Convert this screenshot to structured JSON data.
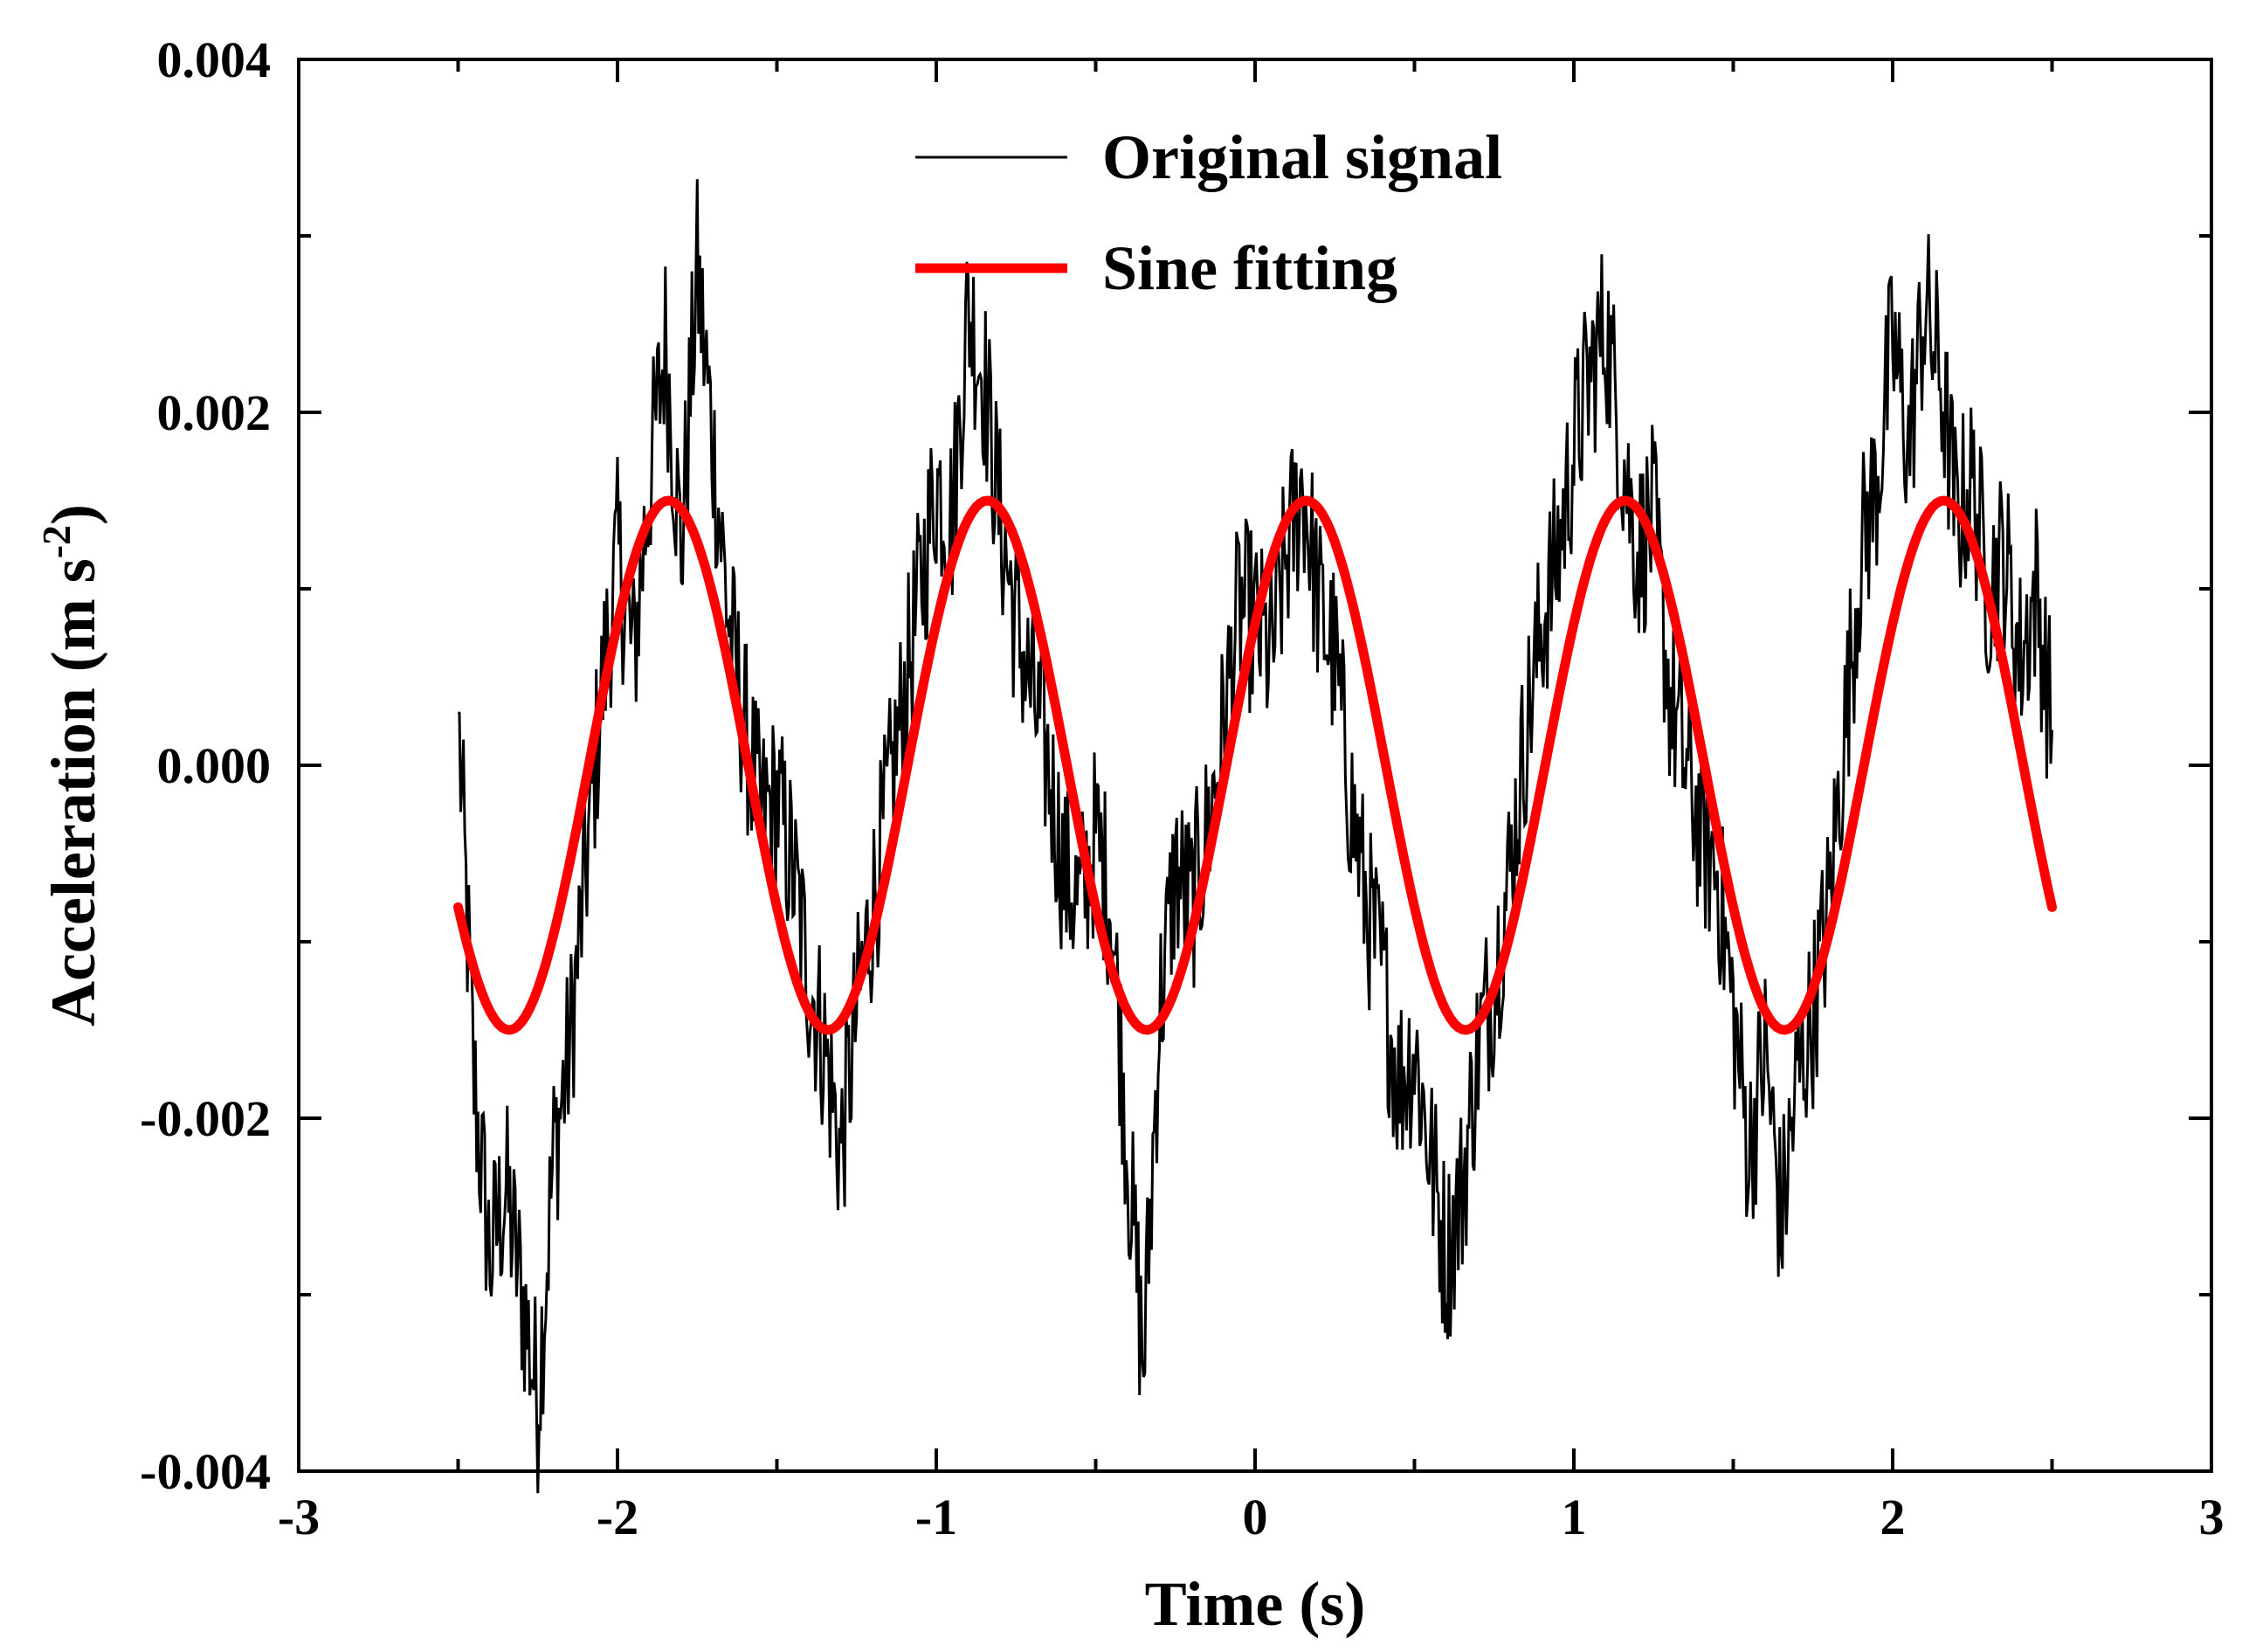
{
  "chart_data": {
    "type": "line",
    "title": "",
    "xlabel": "Time (s)",
    "ylabel": "Acceleration (m s",
    "ylabel_superscript": "-2",
    "ylabel_suffix": ")",
    "xlim": [
      -3,
      3
    ],
    "ylim": [
      -0.004,
      0.004
    ],
    "x_ticks": [
      -3,
      -2,
      -1,
      0,
      1,
      2,
      3
    ],
    "x_tick_labels": [
      "-3",
      "-2",
      "-1",
      "0",
      "1",
      "2",
      "3"
    ],
    "x_minor_ticks": [
      -2.5,
      -1.5,
      -0.5,
      0.5,
      1.5,
      2.5
    ],
    "y_ticks": [
      -0.004,
      -0.002,
      0.0,
      0.002,
      0.004
    ],
    "y_tick_labels": [
      "-0.004",
      "-0.002",
      "0.000",
      "0.002",
      "0.004"
    ],
    "y_minor_ticks": [
      -0.003,
      -0.001,
      0.001,
      0.003
    ],
    "grid": false,
    "legend_position": "top-center",
    "series": [
      {
        "name": "Original signal",
        "color": "#000000",
        "style": "thin",
        "x": [
          -2.5,
          -2.45,
          -2.4,
          -2.35,
          -2.3,
          -2.25,
          -2.2,
          -2.15,
          -2.1,
          -2.05,
          -2.0,
          -1.95,
          -1.9,
          -1.85,
          -1.8,
          -1.75,
          -1.7,
          -1.65,
          -1.6,
          -1.55,
          -1.5,
          -1.45,
          -1.4,
          -1.35,
          -1.3,
          -1.25,
          -1.2,
          -1.15,
          -1.1,
          -1.05,
          -1.0,
          -0.95,
          -0.9,
          -0.85,
          -0.8,
          -0.75,
          -0.7,
          -0.65,
          -0.6,
          -0.55,
          -0.5,
          -0.45,
          -0.4,
          -0.35,
          -0.3,
          -0.25,
          -0.2,
          -0.15,
          -0.1,
          -0.05,
          0.0,
          0.05,
          0.1,
          0.15,
          0.2,
          0.25,
          0.3,
          0.35,
          0.4,
          0.45,
          0.5,
          0.55,
          0.6,
          0.65,
          0.7,
          0.75,
          0.8,
          0.85,
          0.9,
          0.95,
          1.0,
          1.05,
          1.1,
          1.15,
          1.2,
          1.25,
          1.3,
          1.35,
          1.4,
          1.45,
          1.5,
          1.55,
          1.6,
          1.65,
          1.7,
          1.75,
          1.8,
          1.85,
          1.9,
          1.95,
          2.0,
          2.05,
          2.1,
          2.15,
          2.2,
          2.25,
          2.3,
          2.35,
          2.4,
          2.45,
          2.5
        ],
        "y": [
          0.0003,
          -0.0018,
          -0.0028,
          -0.0024,
          -0.003,
          -0.0036,
          -0.0022,
          -0.0016,
          -0.0006,
          0.0004,
          0.0012,
          0.0006,
          0.0016,
          0.0024,
          0.0012,
          0.0028,
          0.0018,
          0.0008,
          0.0002,
          -0.0003,
          -0.0002,
          -0.0006,
          -0.0012,
          -0.0016,
          -0.0022,
          -0.0014,
          -0.0008,
          -0.0002,
          0.0004,
          0.001,
          0.0016,
          0.0014,
          0.0026,
          0.0022,
          0.0014,
          0.0008,
          0.0004,
          0.0,
          -0.0006,
          -0.0008,
          -0.0004,
          -0.0008,
          -0.0022,
          -0.0034,
          -0.0014,
          -0.0006,
          -0.0008,
          -0.0004,
          0.0002,
          0.0009,
          0.0008,
          0.0006,
          0.0012,
          0.0016,
          0.0009,
          0.0006,
          -0.0002,
          -0.0008,
          -0.0012,
          -0.0018,
          -0.0016,
          -0.0022,
          -0.0028,
          -0.0024,
          -0.0016,
          -0.0012,
          -0.0006,
          0.0002,
          0.0008,
          0.0012,
          0.0018,
          0.0022,
          0.0025,
          0.0018,
          0.0012,
          0.0014,
          0.0004,
          0.0,
          -0.0004,
          -0.0006,
          -0.0014,
          -0.0022,
          -0.0016,
          -0.0026,
          -0.0018,
          -0.0014,
          -0.0008,
          0.0002,
          0.0012,
          0.0016,
          0.0024,
          0.0018,
          0.0026,
          0.0022,
          0.0014,
          0.0016,
          0.001,
          0.0012,
          0.0006,
          0.001,
          0.0002
        ]
      },
      {
        "name": "Sine fitting",
        "color": "#ff0000",
        "style": "thick",
        "amplitude": 0.0015,
        "period": 1.0,
        "phase_peak_x": 0.16,
        "x_range": [
          -2.5,
          2.5
        ]
      }
    ]
  }
}
